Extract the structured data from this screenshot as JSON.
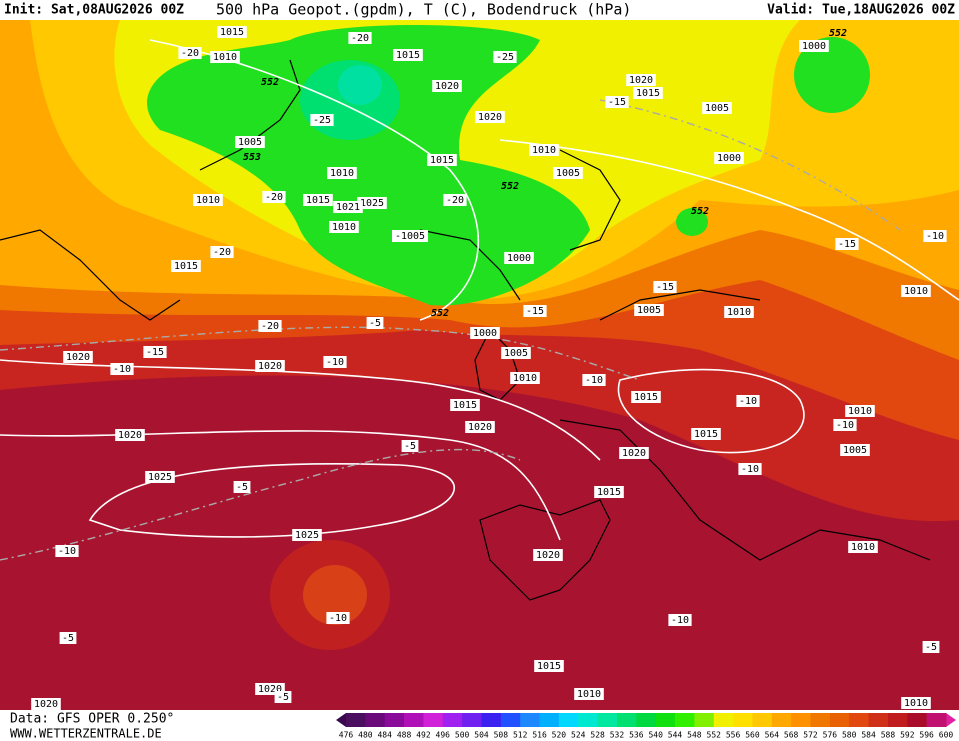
{
  "header": {
    "init": "Init: Sat,08AUG2026 00Z",
    "title": "500 hPa Geopot.(gpdm), T (C), Bodendruck (hPa)",
    "valid": "Valid: Tue,18AUG2026 00Z"
  },
  "footer": {
    "data": "Data: GFS OPER 0.250°",
    "site": "WWW.WETTERZENTRALE.DE"
  },
  "colorbar": {
    "labels": [
      476,
      480,
      484,
      488,
      492,
      496,
      500,
      504,
      508,
      512,
      516,
      520,
      524,
      528,
      532,
      536,
      540,
      544,
      548,
      552,
      556,
      560,
      564,
      568,
      572,
      576,
      580,
      584,
      588,
      592,
      596,
      600
    ],
    "colors": [
      "#4b0f5f",
      "#6a0a7a",
      "#8a0a9a",
      "#b010b8",
      "#d020d8",
      "#a020f0",
      "#7020f0",
      "#3c20f0",
      "#2050ff",
      "#1e88ff",
      "#00b0ff",
      "#00d8ff",
      "#00e8d0",
      "#00e8a0",
      "#00e070",
      "#00d840",
      "#10e010",
      "#30f000",
      "#80f000",
      "#f0f000",
      "#ffe000",
      "#ffc800",
      "#ffa800",
      "#ff9000",
      "#f07800",
      "#e86000",
      "#e04810",
      "#d03018",
      "#c01c20",
      "#a80c28",
      "#c01070"
    ]
  },
  "map": {
    "labels": [
      "1015",
      "1010",
      "-20",
      "552",
      "-20",
      "1015",
      "-25",
      "1020",
      "1020",
      "-25",
      "1005",
      "553",
      "1010",
      "1015",
      "1010",
      "1005",
      "552",
      "1015",
      "1025",
      "1021",
      "-20",
      "1010",
      "-20",
      "1010",
      "-1005",
      "1000",
      "1015",
      "-20",
      "552",
      "-5",
      "-15",
      "1000",
      "1005",
      "1010",
      "-20",
      "-15",
      "1020",
      "-10",
      "1020",
      "-10",
      "1015",
      "1020",
      "1020",
      "-5",
      "1025",
      "-5",
      "1025",
      "-10",
      "1020",
      "1015",
      "1020",
      "1015",
      "1015",
      "-10",
      "-10",
      "-10",
      "1010",
      "-10",
      "1005",
      "1010",
      "1010",
      "-10",
      "-15",
      "-15",
      "1005",
      "1010",
      "1000",
      "552",
      "1005",
      "1020",
      "1015",
      "-15",
      "1000",
      "552",
      "-10",
      "-10",
      "-5",
      "-5",
      "1015",
      "1010",
      "1020",
      "1020",
      "1010",
      "-5"
    ]
  }
}
